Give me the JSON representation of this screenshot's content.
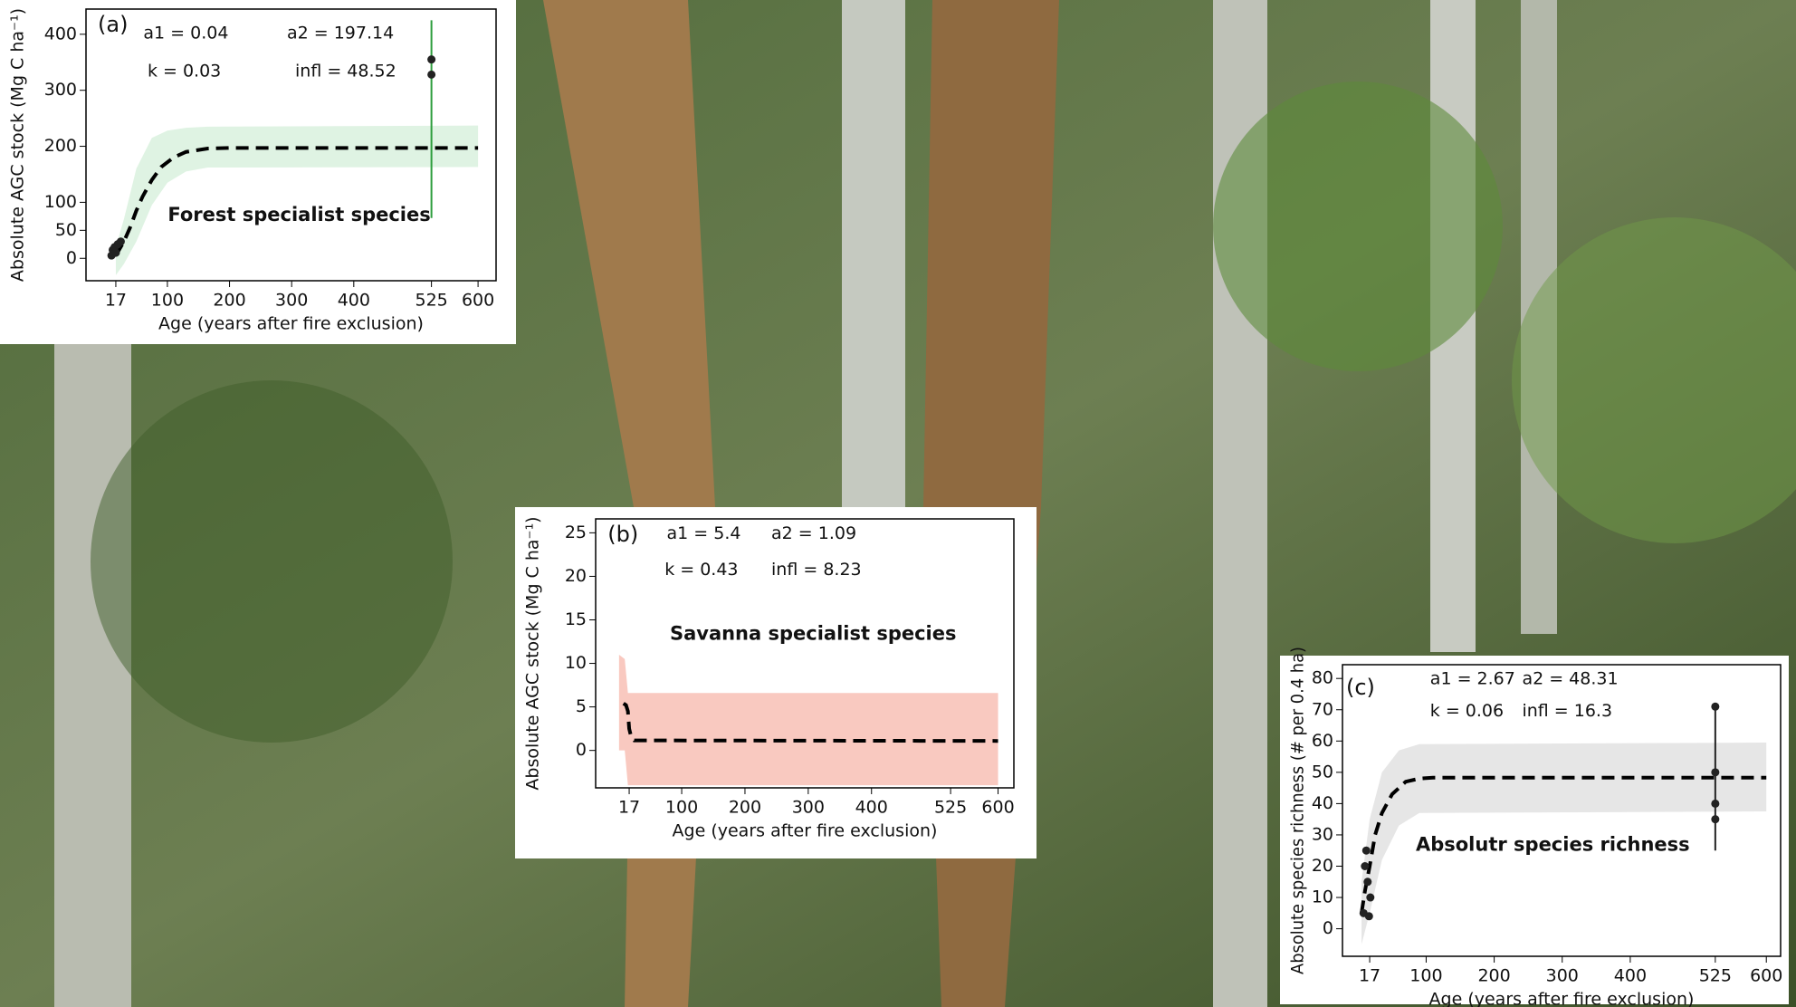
{
  "chart_data": [
    {
      "type": "line",
      "label": "(a)",
      "title": "Forest specialist species",
      "params": [
        "a1 = 0.04",
        "a2 = 197.14",
        "k =  0.03",
        "infl = 48.52"
      ],
      "x_label": "Age (years after fire exclusion)",
      "y_label": "Absolute AGC stock (Mg C ha⁻¹)",
      "xlim": [
        -31,
        629
      ],
      "ylim": [
        -40,
        445
      ],
      "xticks": [
        17,
        100,
        200,
        300,
        400,
        525,
        600
      ],
      "yticks": [
        0,
        50,
        100,
        200,
        300,
        400
      ],
      "band": {
        "color": "#dff3e3",
        "x": [
          17,
          30,
          50,
          75,
          100,
          130,
          165,
          600
        ],
        "lower": [
          -30,
          -10,
          30,
          95,
          135,
          155,
          162,
          163
        ],
        "upper": [
          20,
          70,
          160,
          215,
          228,
          233,
          235,
          237
        ]
      },
      "fit": {
        "color": "#000000",
        "x": [
          17,
          30,
          40,
          50,
          60,
          75,
          90,
          110,
          130,
          165,
          200,
          300,
          400,
          525,
          600
        ],
        "y": [
          5,
          30,
          55,
          85,
          110,
          140,
          163,
          180,
          190,
          196,
          197.14,
          197.14,
          197.14,
          197.14,
          197.14
        ]
      },
      "points": {
        "color": "#222222",
        "x": [
          10,
          12,
          15,
          17,
          20,
          25,
          525,
          525
        ],
        "y": [
          5,
          15,
          20,
          10,
          25,
          30,
          355,
          328
        ]
      },
      "errorbars": [
        {
          "color": "#2e9e3e",
          "x": 525,
          "low": 72,
          "high": 425
        }
      ]
    },
    {
      "type": "line",
      "label": "(b)",
      "title": "Savanna specialist species",
      "params": [
        "a1 = 5.4",
        "a2 = 1.09",
        "k =  0.43",
        "infl = 8.23"
      ],
      "x_label": "Age (years after fire exclusion)",
      "y_label": "Absolute AGC stock (Mg C ha⁻¹)",
      "xlim": [
        -36,
        625
      ],
      "ylim": [
        -4.3,
        26.6
      ],
      "xticks": [
        17,
        100,
        200,
        300,
        400,
        525,
        600
      ],
      "yticks": [
        0,
        5,
        10,
        15,
        20,
        25
      ],
      "band": {
        "color": "#f9c9c0",
        "x": [
          1,
          10,
          15,
          600
        ],
        "lower": [
          0,
          0,
          -4,
          -4
        ],
        "upper": [
          11,
          10.5,
          6.6,
          6.6
        ]
      },
      "fit": {
        "color": "#000000",
        "x": [
          8,
          12,
          15,
          17,
          20,
          25,
          600
        ],
        "y": [
          5.4,
          5.2,
          4.5,
          2.5,
          1.6,
          1.15,
          1.09
        ]
      },
      "points": {
        "color": "#222222",
        "x": [],
        "y": []
      },
      "errorbars": []
    },
    {
      "type": "line",
      "label": "(c)",
      "title": "Absolutr species richness",
      "params": [
        "a1 = 2.67",
        "a2 = 48.31",
        "k = 0.06",
        "infl = 16.3"
      ],
      "x_label": "Age (years after fire exclusion)",
      "y_label": "Absolute species richness (# per 0.4 ha)",
      "xlim": [
        -23,
        621
      ],
      "ylim": [
        -8.8,
        84.4
      ],
      "xticks": [
        17,
        100,
        200,
        300,
        400,
        525,
        600
      ],
      "yticks": [
        0,
        10,
        20,
        30,
        40,
        50,
        60,
        70,
        80
      ],
      "band": {
        "color": "#e6e6e6",
        "x": [
          5,
          17,
          35,
          60,
          90,
          600
        ],
        "lower": [
          -5,
          5,
          22,
          33,
          37,
          37.5
        ],
        "upper": [
          15,
          35,
          50,
          57,
          59,
          59.5
        ]
      },
      "fit": {
        "color": "#000000",
        "x": [
          5,
          10,
          17,
          25,
          35,
          50,
          70,
          90,
          110,
          600
        ],
        "y": [
          5,
          12,
          20,
          30,
          37,
          43,
          47,
          48,
          48.3,
          48.31
        ]
      },
      "points": {
        "color": "#222222",
        "x": [
          8,
          10,
          12,
          14,
          16,
          18,
          525,
          525,
          525,
          525
        ],
        "y": [
          5,
          20,
          25,
          15,
          4,
          10,
          71,
          50,
          40,
          35
        ]
      },
      "errorbars": [
        {
          "color": "#222222",
          "x": 525,
          "low": 25,
          "high": 71
        }
      ]
    }
  ]
}
